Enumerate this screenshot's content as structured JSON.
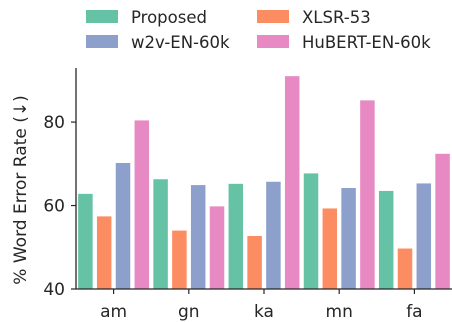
{
  "chart_data": {
    "type": "bar",
    "categories": [
      "am",
      "gn",
      "ka",
      "mn",
      "fa"
    ],
    "series": [
      {
        "name": "Proposed",
        "color": "#66c2a5",
        "values": [
          62.8,
          66.3,
          65.2,
          67.7,
          63.5
        ]
      },
      {
        "name": "XLSR-53",
        "color": "#fc8d62",
        "values": [
          57.4,
          54.0,
          52.7,
          59.3,
          49.7
        ]
      },
      {
        "name": "w2v-EN-60k",
        "color": "#8da0cb",
        "values": [
          70.2,
          64.9,
          65.7,
          64.2,
          65.3
        ]
      },
      {
        "name": "HuBERT-EN-60k",
        "color": "#e78ac3",
        "values": [
          80.4,
          59.8,
          91.0,
          85.2,
          72.4
        ]
      }
    ],
    "title": "",
    "xlabel": "",
    "ylabel": "% Word Error Rate (↓)",
    "ylim": [
      40,
      92
    ],
    "yticks": [
      40,
      60,
      80
    ],
    "grid": false,
    "legend": {
      "placement": "top",
      "columns": 2
    }
  }
}
